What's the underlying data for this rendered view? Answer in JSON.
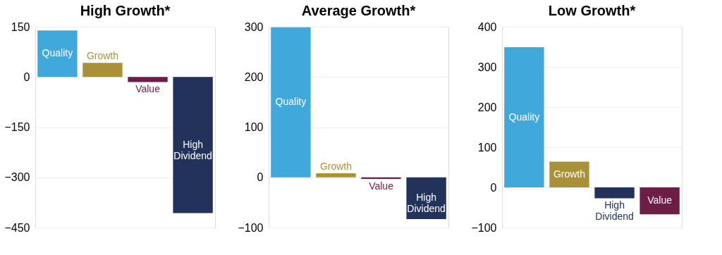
{
  "chart_data": [
    {
      "type": "bar",
      "title": "High Growth*",
      "categories": [
        "Quality",
        "Growth",
        "Value",
        "High Dividend"
      ],
      "values": [
        139,
        42,
        -15,
        -407
      ],
      "colors": [
        "#41a8dc",
        "#a9913a",
        "#6e1d46",
        "#22325a"
      ],
      "ylim": [
        -450,
        150
      ],
      "yticks": [
        -450,
        -300,
        -150,
        0,
        150
      ],
      "grid": "y",
      "tick_labels": "y"
    },
    {
      "type": "bar",
      "title": "Average Growth*",
      "categories": [
        "Quality",
        "Growth",
        "Value",
        "High Dividend"
      ],
      "values": [
        299,
        8,
        -3,
        -83
      ],
      "colors": [
        "#41a8dc",
        "#a9913a",
        "#6e1d46",
        "#22325a"
      ],
      "ylim": [
        -100,
        300
      ],
      "yticks": [
        -100,
        0,
        100,
        200,
        300
      ],
      "grid": "y",
      "tick_labels": "y"
    },
    {
      "type": "bar",
      "title": "Low Growth*",
      "categories": [
        "Quality",
        "Growth",
        "High Dividend",
        "Value"
      ],
      "values": [
        349,
        64,
        -27,
        -67
      ],
      "colors": [
        "#41a8dc",
        "#a9913a",
        "#22325a",
        "#6e1d46"
      ],
      "ylim": [
        -100,
        400
      ],
      "yticks": [
        -100,
        0,
        100,
        200,
        300,
        400
      ],
      "grid": "y",
      "tick_labels": "y"
    }
  ]
}
